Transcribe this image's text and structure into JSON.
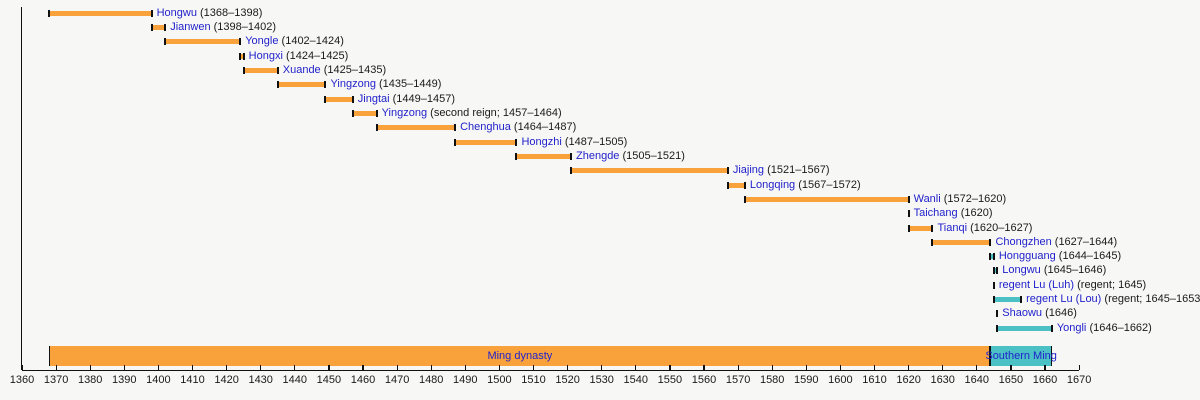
{
  "chart_data": {
    "type": "timeline",
    "description": "Gantt-style timeline of Ming dynasty emperors' reigns",
    "x_axis": {
      "min": 1360,
      "max": 1670,
      "tick_step": 10,
      "tick_labels": [
        "1360",
        "1370",
        "1380",
        "1390",
        "1400",
        "1410",
        "1420",
        "1430",
        "1440",
        "1450",
        "1460",
        "1470",
        "1480",
        "1490",
        "1500",
        "1510",
        "1520",
        "1530",
        "1540",
        "1550",
        "1560",
        "1570",
        "1580",
        "1590",
        "1600",
        "1610",
        "1620",
        "1630",
        "1640",
        "1650",
        "1660",
        "1670"
      ]
    },
    "colors": {
      "reign_bar_orange": "#f9a23c",
      "reign_bar_teal": "#4bc0c5",
      "bar_cap_black": "#111111",
      "link_blue": "#2222cc",
      "text_black": "#1a1a1a",
      "background": "#f7f7f5"
    },
    "reigns": [
      {
        "link": "Hongwu",
        "detail": "(1368–1398)",
        "start": 1368,
        "end": 1398,
        "color": "orange"
      },
      {
        "link": "Jianwen",
        "detail": "(1398–1402)",
        "start": 1398,
        "end": 1402,
        "color": "orange"
      },
      {
        "link": "Yongle",
        "detail": "(1402–1424)",
        "start": 1402,
        "end": 1424,
        "color": "orange"
      },
      {
        "link": "Hongxi",
        "detail": "(1424–1425)",
        "start": 1424,
        "end": 1425,
        "color": "orange"
      },
      {
        "link": "Xuande",
        "detail": "(1425–1435)",
        "start": 1425,
        "end": 1435,
        "color": "orange"
      },
      {
        "link": "Yingzong",
        "detail": "(1435–1449)",
        "start": 1435,
        "end": 1449,
        "color": "orange"
      },
      {
        "link": "Jingtai",
        "detail": "(1449–1457)",
        "start": 1449,
        "end": 1457,
        "color": "orange"
      },
      {
        "link": "Yingzong",
        "detail": "(second reign; 1457–1464)",
        "start": 1457,
        "end": 1464,
        "color": "orange"
      },
      {
        "link": "Chenghua",
        "detail": "(1464–1487)",
        "start": 1464,
        "end": 1487,
        "color": "orange"
      },
      {
        "link": "Hongzhi",
        "detail": "(1487–1505)",
        "start": 1487,
        "end": 1505,
        "color": "orange"
      },
      {
        "link": "Zhengde",
        "detail": "(1505–1521)",
        "start": 1505,
        "end": 1521,
        "color": "orange"
      },
      {
        "link": "Jiajing",
        "detail": "(1521–1567)",
        "start": 1521,
        "end": 1567,
        "color": "orange"
      },
      {
        "link": "Longqing",
        "detail": "(1567–1572)",
        "start": 1567,
        "end": 1572,
        "color": "orange"
      },
      {
        "link": "Wanli",
        "detail": "(1572–1620)",
        "start": 1572,
        "end": 1620,
        "color": "orange"
      },
      {
        "link": "Taichang",
        "detail": "(1620)",
        "start": 1620,
        "end": 1620,
        "color": "orange"
      },
      {
        "link": "Tianqi",
        "detail": "(1620–1627)",
        "start": 1620,
        "end": 1627,
        "color": "orange"
      },
      {
        "link": "Chongzhen",
        "detail": "(1627–1644)",
        "start": 1627,
        "end": 1644,
        "color": "orange"
      },
      {
        "link": "Hongguang",
        "detail": "(1644–1645)",
        "start": 1644,
        "end": 1645,
        "color": "teal"
      },
      {
        "link": "Longwu",
        "detail": "(1645–1646)",
        "start": 1645,
        "end": 1646,
        "color": "teal"
      },
      {
        "link": "regent Lu (Luh)",
        "detail": "(regent; 1645)",
        "start": 1645,
        "end": 1645,
        "color": "teal"
      },
      {
        "link": "regent Lu (Lou)",
        "detail": "(regent; 1645–1653)",
        "start": 1645,
        "end": 1653,
        "color": "teal"
      },
      {
        "link": "Shaowu",
        "detail": "(1646)",
        "start": 1646,
        "end": 1646,
        "color": "teal"
      },
      {
        "link": "Yongli",
        "detail": "(1646–1662)",
        "start": 1646,
        "end": 1662,
        "color": "teal"
      }
    ],
    "eras": [
      {
        "label": "Ming dynasty",
        "start": 1368,
        "end": 1644,
        "color": "orange"
      },
      {
        "label": "Southern Ming",
        "start": 1644,
        "end": 1662,
        "color": "teal"
      }
    ]
  }
}
